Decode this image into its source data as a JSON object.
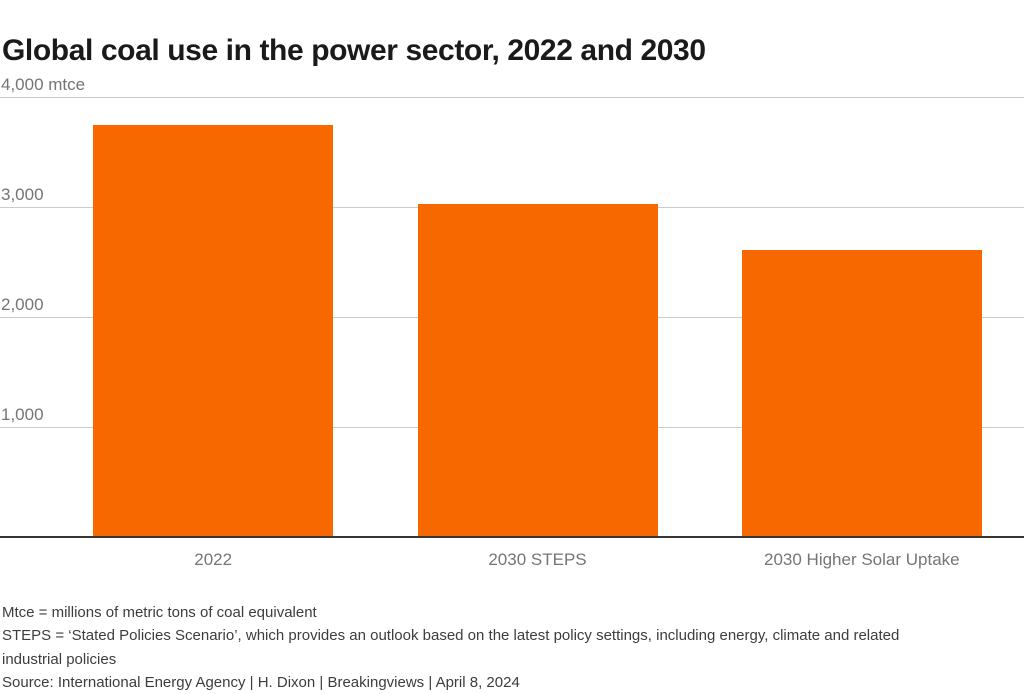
{
  "header": {
    "title": "Global coal use in the power sector, 2022 and 2030"
  },
  "chart_data": {
    "type": "bar",
    "title": "Global coal use in the power sector, 2022 and 2030",
    "unit_label": "mtce",
    "categories": [
      "2022",
      "2030 STEPS",
      "2030 Higher Solar Uptake"
    ],
    "values": [
      3750,
      3030,
      2610
    ],
    "xlabel": "",
    "ylabel": "mtce",
    "ylim": [
      0,
      4000
    ],
    "grid": true,
    "legend_position": "none",
    "y_ticks": [
      {
        "value": 4000,
        "label": "4,000 mtce"
      },
      {
        "value": 3000,
        "label": "3,000"
      },
      {
        "value": 2000,
        "label": "2,000"
      },
      {
        "value": 1000,
        "label": "1,000"
      }
    ]
  },
  "colors": {
    "bar": "#f76900",
    "gridline": "#cbcbcb",
    "axis_baseline": "#38342f",
    "tick_text": "#757575",
    "title_text": "#1a1a1a",
    "footer_text": "#3d3d3d"
  },
  "footer": {
    "lines": [
      "Mtce = millions of metric tons of coal equivalent",
      "STEPS = ‘Stated Policies Scenario’, which provides an outlook based on the latest policy settings, including energy, climate and related",
      "industrial policies",
      "Source: International Energy Agency | H. Dixon | Breakingviews | April 8, 2024"
    ]
  }
}
